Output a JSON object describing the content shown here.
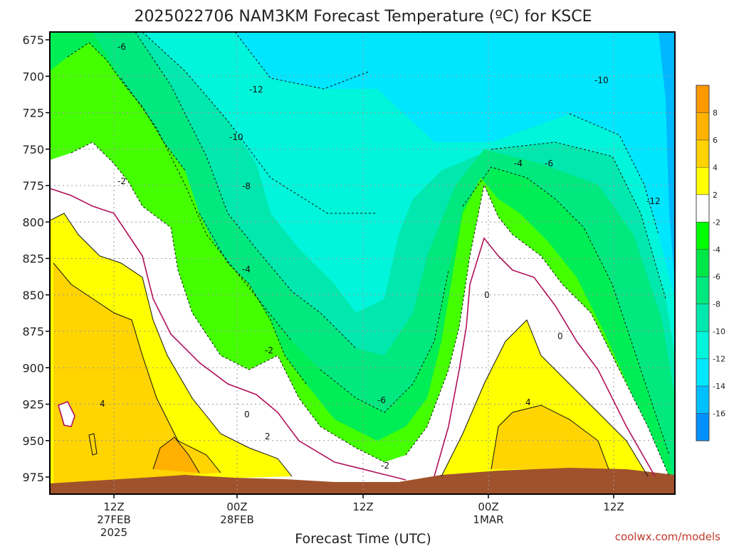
{
  "chart_data": {
    "type": "heatmap",
    "title": "2025022706 NAM3KM Forecast Temperature (ºC) for KSCE",
    "xlabel": "Forecast Time (UTC)",
    "ylabel": "",
    "y_scale": "pressure",
    "y_range": [
      675,
      975
    ],
    "y_ticks": [
      "675",
      "700",
      "725",
      "750",
      "775",
      "800",
      "825",
      "850",
      "875",
      "900",
      "925",
      "950",
      "975"
    ],
    "x_ticks": [
      {
        "label": "12Z",
        "sub": "27FEB",
        "sub2": "2025"
      },
      {
        "label": "00Z",
        "sub": "28FEB",
        "sub2": ""
      },
      {
        "label": "12Z",
        "sub": "",
        "sub2": ""
      },
      {
        "label": "00Z",
        "sub": "1MAR",
        "sub2": ""
      },
      {
        "label": "12Z",
        "sub": "",
        "sub2": ""
      }
    ],
    "contour_labels": [
      "-6",
      "-12",
      "-10",
      "-8",
      "-4",
      "-2",
      "-2",
      "0",
      "2",
      "-6",
      "-2",
      "0",
      "0",
      "4",
      "4",
      "-4",
      "-6",
      "-10",
      "-12"
    ],
    "colorbar": {
      "labels": [
        "8",
        "6",
        "4",
        "2",
        "-2",
        "-4",
        "-6",
        "-8",
        "-10",
        "-12",
        "-14",
        "-16"
      ],
      "colors": [
        "#ff9900",
        "#ffb300",
        "#ffd200",
        "#ffff00",
        "#ffffff",
        "#00ff00",
        "#00e847",
        "#00e87e",
        "#00e8ae",
        "#00f5da",
        "#00e6ff",
        "#00bfff",
        "#0090ff"
      ]
    },
    "grid": true,
    "credit": "coolwx.com/models"
  }
}
